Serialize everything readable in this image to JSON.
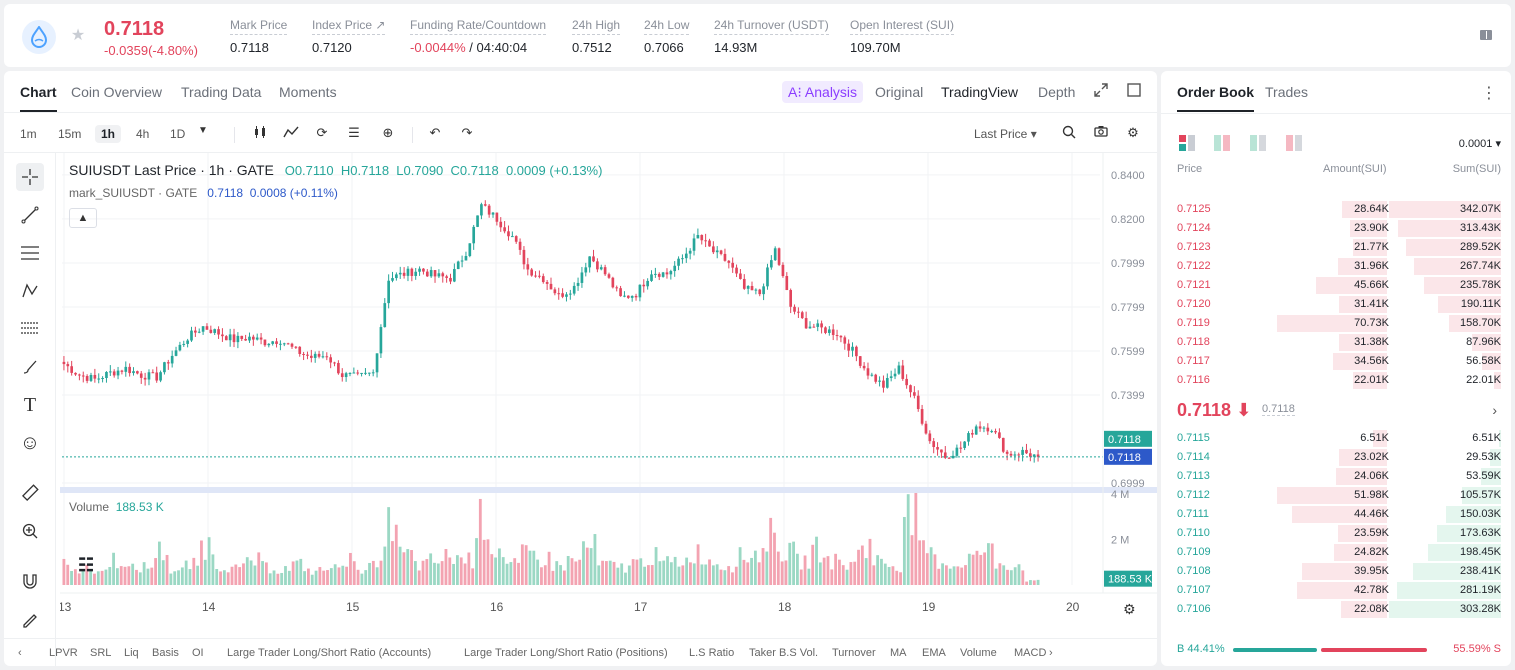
{
  "header": {
    "last_price": "0.7118",
    "change": "-0.0359(-4.80%)",
    "stats": [
      {
        "label": "Mark Price",
        "value": "0.7118"
      },
      {
        "label": "Index Price ↗",
        "value": "0.7120"
      },
      {
        "label": "Funding Rate/Countdown",
        "value_neg": "-0.0044%",
        "value": " / 04:40:04"
      },
      {
        "label": "24h High",
        "value": "0.7512"
      },
      {
        "label": "24h Low",
        "value": "0.7066"
      },
      {
        "label": "24h Turnover (USDT)",
        "value": "14.93M"
      },
      {
        "label": "Open Interest (SUI)",
        "value": "109.70M"
      }
    ]
  },
  "chart_tabs": [
    "Chart",
    "Coin Overview",
    "Trading Data",
    "Moments"
  ],
  "view_tabs": {
    "ai": "A⁝ Analysis",
    "original": "Original",
    "tradingview": "TradingView",
    "depth": "Depth"
  },
  "timeframes": [
    "1m",
    "15m",
    "1h",
    "4h",
    "1D"
  ],
  "price_type": "Last Price ▾",
  "legend": {
    "title": "SUIUSDT Last Price · 1h · GATE",
    "o": "O0.7110",
    "h": "H0.7118",
    "l": "L0.7090",
    "c": "C0.7118",
    "chg": "0.0009 (+0.13%)",
    "mark_name": "mark_SUIUSDT · GATE",
    "mark_val": "0.7118",
    "mark_chg": "0.0008 (+0.11%)"
  },
  "volume_legend": {
    "label": "Volume",
    "value": "188.53 K"
  },
  "price_axis": [
    "0.8400",
    "0.8200",
    "0.7999",
    "0.7799",
    "0.7599",
    "0.7399",
    "0.6999"
  ],
  "price_tag_last": "0.7118",
  "price_tag_mark": "0.7118",
  "vol_axis": [
    "4 M",
    "2 M"
  ],
  "vol_tag": "188.53 K",
  "x_axis": [
    "13",
    "14",
    "15",
    "16",
    "17",
    "18",
    "19",
    "20"
  ],
  "indicators": [
    "LPVR",
    "SRL",
    "Liq",
    "Basis",
    "OI",
    "Large Trader Long/Short Ratio (Accounts)",
    "Large Trader Long/Short Ratio (Positions)",
    "L.S Ratio",
    "Taker B.S Vol.",
    "Turnover",
    "MA",
    "EMA",
    "Volume",
    "MACD"
  ],
  "orderbook": {
    "tabs": [
      "Order Book",
      "Trades"
    ],
    "precision": "0.0001 ▾",
    "cols": [
      "Price",
      "Amount(SUI)",
      "Sum(SUI)"
    ],
    "asks": [
      {
        "p": "0.7125",
        "a": "28.64K",
        "s": "342.07K",
        "af": 0.41,
        "sf": 1.0
      },
      {
        "p": "0.7124",
        "a": "23.90K",
        "s": "313.43K",
        "af": 0.34,
        "sf": 0.92
      },
      {
        "p": "0.7123",
        "a": "21.77K",
        "s": "289.52K",
        "af": 0.31,
        "sf": 0.85
      },
      {
        "p": "0.7122",
        "a": "31.96K",
        "s": "267.74K",
        "af": 0.45,
        "sf": 0.78
      },
      {
        "p": "0.7121",
        "a": "45.66K",
        "s": "235.78K",
        "af": 0.65,
        "sf": 0.69
      },
      {
        "p": "0.7120",
        "a": "31.41K",
        "s": "190.11K",
        "af": 0.44,
        "sf": 0.56
      },
      {
        "p": "0.7119",
        "a": "70.73K",
        "s": "158.70K",
        "af": 1.0,
        "sf": 0.46
      },
      {
        "p": "0.7118",
        "a": "31.38K",
        "s": "87.96K",
        "af": 0.44,
        "sf": 0.26
      },
      {
        "p": "0.7117",
        "a": "34.56K",
        "s": "56.58K",
        "af": 0.49,
        "sf": 0.17
      },
      {
        "p": "0.7116",
        "a": "22.01K",
        "s": "22.01K",
        "af": 0.31,
        "sf": 0.06
      }
    ],
    "last": "0.7118 ⬇",
    "mark": "0.7118",
    "bids": [
      {
        "p": "0.7115",
        "a": "6.51K",
        "s": "6.51K",
        "af": 0.13,
        "sf": 0.02
      },
      {
        "p": "0.7114",
        "a": "23.02K",
        "s": "29.53K",
        "af": 0.44,
        "sf": 0.1
      },
      {
        "p": "0.7113",
        "a": "24.06K",
        "s": "53.59K",
        "af": 0.46,
        "sf": 0.18
      },
      {
        "p": "0.7112",
        "a": "51.98K",
        "s": "105.57K",
        "af": 1.0,
        "sf": 0.35
      },
      {
        "p": "0.7111",
        "a": "44.46K",
        "s": "150.03K",
        "af": 0.86,
        "sf": 0.49
      },
      {
        "p": "0.7110",
        "a": "23.59K",
        "s": "173.63K",
        "af": 0.45,
        "sf": 0.57
      },
      {
        "p": "0.7109",
        "a": "24.82K",
        "s": "198.45K",
        "af": 0.48,
        "sf": 0.65
      },
      {
        "p": "0.7108",
        "a": "39.95K",
        "s": "238.41K",
        "af": 0.77,
        "sf": 0.79
      },
      {
        "p": "0.7107",
        "a": "42.78K",
        "s": "281.19K",
        "af": 0.82,
        "sf": 0.93
      },
      {
        "p": "0.7106",
        "a": "22.08K",
        "s": "303.28K",
        "af": 0.42,
        "sf": 1.0
      }
    ],
    "buy_ratio": "B 44.41%",
    "sell_ratio": "55.59% S",
    "buy_fraction": 0.4441
  },
  "colors": {
    "up": "#26a69a",
    "down": "#e2445c",
    "accent": "#8b3dff"
  },
  "chart_data": {
    "type": "candlestick",
    "title": "SUIUSDT Last Price · 1h · GATE",
    "x_ticks": [
      "13",
      "14",
      "15",
      "16",
      "17",
      "18",
      "19",
      "20"
    ],
    "ylim": [
      0.6999,
      0.84
    ],
    "y_ticks": [
      0.84,
      0.82,
      0.7999,
      0.7799,
      0.7599,
      0.7399,
      0.6999
    ],
    "close_path": [
      0.754,
      0.749,
      0.747,
      0.75,
      0.752,
      0.749,
      0.748,
      0.758,
      0.766,
      0.771,
      0.768,
      0.765,
      0.766,
      0.764,
      0.765,
      0.76,
      0.757,
      0.758,
      0.749,
      0.748,
      0.75,
      0.793,
      0.795,
      0.797,
      0.794,
      0.793,
      0.805,
      0.826,
      0.82,
      0.812,
      0.797,
      0.793,
      0.785,
      0.789,
      0.803,
      0.795,
      0.784,
      0.786,
      0.796,
      0.795,
      0.802,
      0.812,
      0.805,
      0.8,
      0.788,
      0.786,
      0.806,
      0.78,
      0.772,
      0.77,
      0.768,
      0.76,
      0.75,
      0.744,
      0.752,
      0.738,
      0.719,
      0.712,
      0.716,
      0.726,
      0.725,
      0.713,
      0.714,
      0.7118
    ],
    "volume_ylim": [
      0,
      4000000
    ],
    "volume": [
      1.0,
      0.75,
      0.7,
      1.3,
      0.8,
      0.9,
      1.7,
      0.7,
      1.0,
      2.0,
      1.0,
      0.8,
      1.2,
      0.9,
      0.8,
      1.0,
      0.7,
      0.8,
      1.3,
      0.9,
      0.9,
      3.0,
      1.5,
      1.0,
      1.2,
      1.4,
      1.3,
      3.2,
      1.8,
      1.0,
      1.5,
      1.3,
      1.0,
      1.2,
      1.9,
      1.0,
      0.9,
      1.1,
      1.4,
      1.1,
      1.2,
      1.6,
      1.2,
      1.0,
      1.4,
      1.6,
      2.5,
      1.6,
      1.2,
      1.8,
      1.2,
      1.0,
      2.0,
      1.2,
      1.0,
      3.6,
      1.7,
      1.2,
      1.0,
      1.4,
      1.7,
      1.1,
      1.0,
      0.19
    ]
  }
}
